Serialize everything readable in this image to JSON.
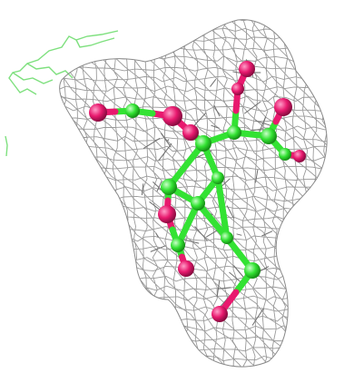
{
  "scene": {
    "subject": "ligand-in-electron-density",
    "colors": {
      "background": "#ffffff",
      "mesh": "#9a9a9a",
      "mesh_dark": "#6e6e6e",
      "carbon": "#33e233",
      "carbon_light": "#9af59a",
      "oxygen": "#e8196e",
      "oxygen_light": "#ff9ec8",
      "protein_trace": "#7ee07e"
    },
    "icons": [
      "mesh-icon",
      "atom-icon",
      "bond-icon"
    ]
  }
}
